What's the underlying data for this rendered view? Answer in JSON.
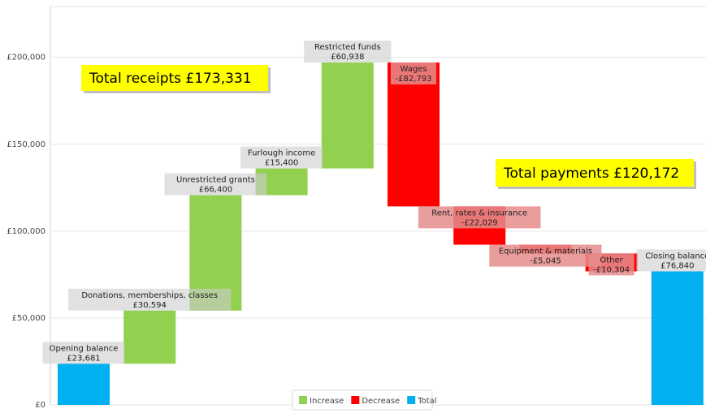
{
  "chart_data": {
    "type": "waterfall",
    "categories": [
      "Opening balance",
      "Donations, memberships, classes",
      "Unrestricted grants",
      "Furlough income",
      "Restricted funds",
      "Wages",
      "Rent, rates & insurance",
      "Equipment & materials",
      "Other",
      "Closing balance"
    ],
    "values": [
      23681,
      30594,
      66400,
      15400,
      60938,
      -82793,
      -22029,
      -5045,
      -10304,
      76840
    ],
    "value_labels": [
      "£23,681",
      "£30,594",
      "£66,400",
      "£15,400",
      "£60,938",
      "-£82,793",
      "-£22,029",
      "-£5,045",
      "-£10,304",
      "£76,840"
    ],
    "series": [
      {
        "name": "Increase",
        "color": "#92d050"
      },
      {
        "name": "Decrease",
        "color": "#ff0000"
      },
      {
        "name": "Total",
        "color": "#00b0f0"
      }
    ],
    "ylim": [
      0,
      226000
    ],
    "yticks": [
      {
        "value": 0,
        "label": "£0"
      },
      {
        "value": 50000,
        "label": "£50,000"
      },
      {
        "value": 100000,
        "label": "£100,000"
      },
      {
        "value": 150000,
        "label": "£150,000"
      },
      {
        "value": 200000,
        "label": "£200,000"
      }
    ],
    "grid": true,
    "annotations": [
      "Total receipts £173,331",
      "Total payments £120,172"
    ]
  }
}
